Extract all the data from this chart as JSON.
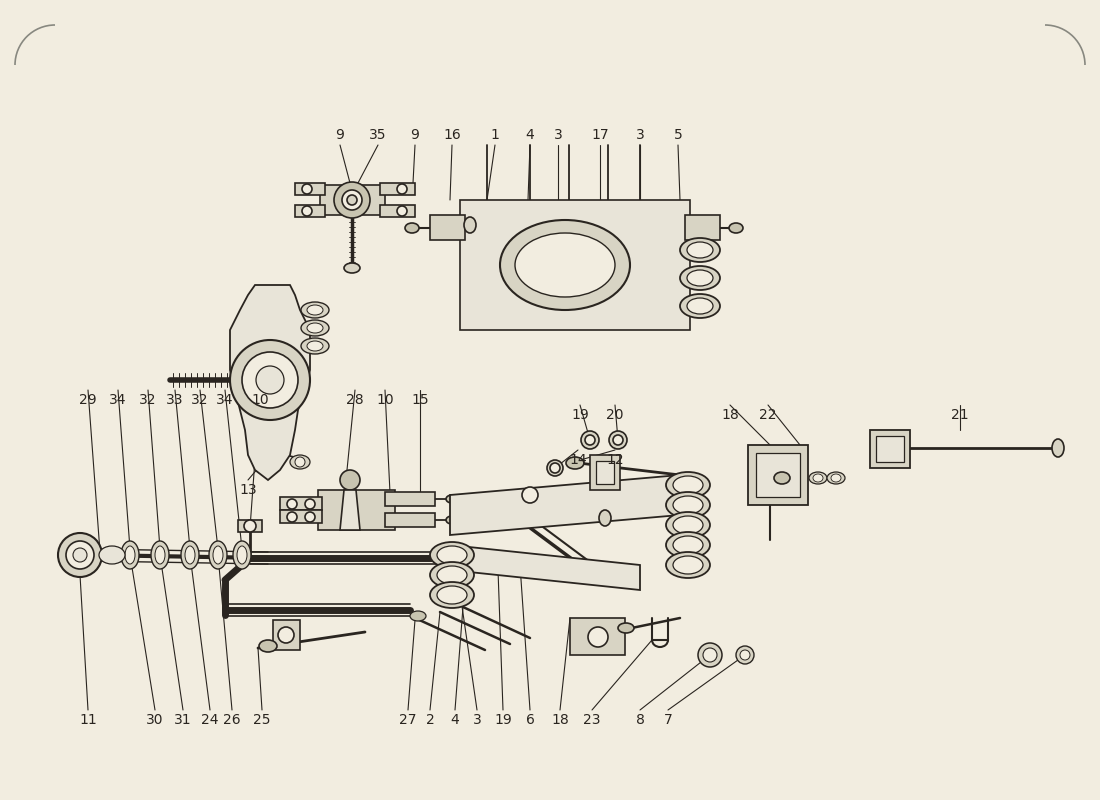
{
  "bg_color": "#f2ede0",
  "line_color": "#2a2520",
  "figsize": [
    11.0,
    8.0
  ],
  "dpi": 100,
  "top_labels": [
    [
      "9",
      340,
      135
    ],
    [
      "35",
      378,
      135
    ],
    [
      "9",
      415,
      135
    ],
    [
      "16",
      452,
      135
    ],
    [
      "1",
      495,
      135
    ],
    [
      "4",
      530,
      135
    ],
    [
      "3",
      558,
      135
    ],
    [
      "17",
      600,
      135
    ],
    [
      "3",
      640,
      135
    ],
    [
      "5",
      678,
      135
    ]
  ],
  "mid_labels": [
    [
      "29",
      88,
      400
    ],
    [
      "34",
      118,
      400
    ],
    [
      "32",
      148,
      400
    ],
    [
      "33",
      175,
      400
    ],
    [
      "32",
      200,
      400
    ],
    [
      "34",
      225,
      400
    ],
    [
      "10",
      260,
      400
    ],
    [
      "28",
      355,
      400
    ],
    [
      "10",
      385,
      400
    ],
    [
      "15",
      420,
      400
    ],
    [
      "19",
      580,
      415
    ],
    [
      "20",
      615,
      415
    ],
    [
      "18",
      730,
      415
    ],
    [
      "22",
      768,
      415
    ],
    [
      "21",
      960,
      415
    ],
    [
      "14",
      578,
      460
    ],
    [
      "12",
      615,
      460
    ],
    [
      "13",
      248,
      490
    ]
  ],
  "bot_labels": [
    [
      "11",
      88,
      720
    ],
    [
      "30",
      155,
      720
    ],
    [
      "31",
      183,
      720
    ],
    [
      "24",
      210,
      720
    ],
    [
      "26",
      232,
      720
    ],
    [
      "25",
      262,
      720
    ],
    [
      "27",
      408,
      720
    ],
    [
      "2",
      430,
      720
    ],
    [
      "4",
      455,
      720
    ],
    [
      "3",
      477,
      720
    ],
    [
      "19",
      503,
      720
    ],
    [
      "6",
      530,
      720
    ],
    [
      "18",
      560,
      720
    ],
    [
      "23",
      592,
      720
    ],
    [
      "8",
      640,
      720
    ],
    [
      "7",
      668,
      720
    ]
  ]
}
